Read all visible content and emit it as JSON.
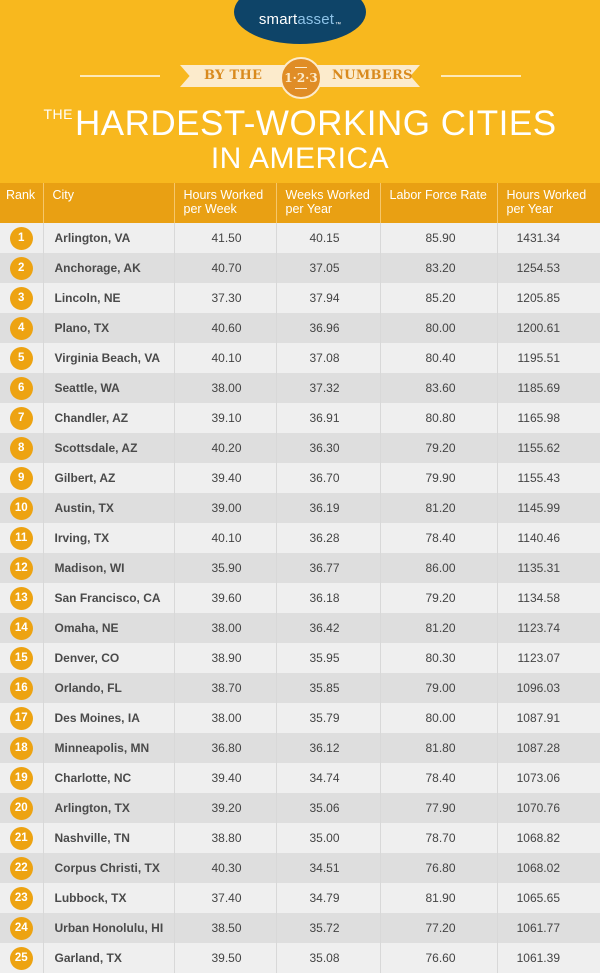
{
  "brand": {
    "logo_main": "smart",
    "logo_accent": "asset",
    "logo_tm": "™",
    "colors": {
      "header_bg": "#F8B81E",
      "table_header_bg": "#E9A013",
      "logo_bg": "#0E4468",
      "rank_badge": "#EDA312"
    }
  },
  "ribbon": {
    "left": "BY THE",
    "badge": "1·2·3",
    "right": "NUMBERS"
  },
  "title": {
    "the": "THE",
    "line1": "HARDEST-WORKING CITIES",
    "line2": "IN AMERICA"
  },
  "table": {
    "columns": [
      "Rank",
      "City",
      "Hours Worked per Week",
      "Weeks Worked per Year",
      "Labor Force Rate",
      "Hours Worked per Year"
    ],
    "rows": [
      {
        "rank": "1",
        "city": "Arlington, VA",
        "hours_week": "41.50",
        "weeks_year": "40.15",
        "labor_rate": "85.90",
        "hours_year": "1431.34"
      },
      {
        "rank": "2",
        "city": "Anchorage, AK",
        "hours_week": "40.70",
        "weeks_year": "37.05",
        "labor_rate": "83.20",
        "hours_year": "1254.53"
      },
      {
        "rank": "3",
        "city": "Lincoln, NE",
        "hours_week": "37.30",
        "weeks_year": "37.94",
        "labor_rate": "85.20",
        "hours_year": "1205.85"
      },
      {
        "rank": "4",
        "city": "Plano, TX",
        "hours_week": "40.60",
        "weeks_year": "36.96",
        "labor_rate": "80.00",
        "hours_year": "1200.61"
      },
      {
        "rank": "5",
        "city": "Virginia Beach, VA",
        "hours_week": "40.10",
        "weeks_year": "37.08",
        "labor_rate": "80.40",
        "hours_year": "1195.51"
      },
      {
        "rank": "6",
        "city": "Seattle, WA",
        "hours_week": "38.00",
        "weeks_year": "37.32",
        "labor_rate": "83.60",
        "hours_year": "1185.69"
      },
      {
        "rank": "7",
        "city": "Chandler, AZ",
        "hours_week": "39.10",
        "weeks_year": "36.91",
        "labor_rate": "80.80",
        "hours_year": "1165.98"
      },
      {
        "rank": "8",
        "city": "Scottsdale, AZ",
        "hours_week": "40.20",
        "weeks_year": "36.30",
        "labor_rate": "79.20",
        "hours_year": "1155.62"
      },
      {
        "rank": "9",
        "city": "Gilbert, AZ",
        "hours_week": "39.40",
        "weeks_year": "36.70",
        "labor_rate": "79.90",
        "hours_year": "1155.43"
      },
      {
        "rank": "10",
        "city": "Austin, TX",
        "hours_week": "39.00",
        "weeks_year": "36.19",
        "labor_rate": "81.20",
        "hours_year": "1145.99"
      },
      {
        "rank": "11",
        "city": "Irving, TX",
        "hours_week": "40.10",
        "weeks_year": "36.28",
        "labor_rate": "78.40",
        "hours_year": "1140.46"
      },
      {
        "rank": "12",
        "city": "Madison, WI",
        "hours_week": "35.90",
        "weeks_year": "36.77",
        "labor_rate": "86.00",
        "hours_year": "1135.31"
      },
      {
        "rank": "13",
        "city": "San Francisco, CA",
        "hours_week": "39.60",
        "weeks_year": "36.18",
        "labor_rate": "79.20",
        "hours_year": "1134.58"
      },
      {
        "rank": "14",
        "city": "Omaha, NE",
        "hours_week": "38.00",
        "weeks_year": "36.42",
        "labor_rate": "81.20",
        "hours_year": "1123.74"
      },
      {
        "rank": "15",
        "city": "Denver, CO",
        "hours_week": "38.90",
        "weeks_year": "35.95",
        "labor_rate": "80.30",
        "hours_year": "1123.07"
      },
      {
        "rank": "16",
        "city": "Orlando, FL",
        "hours_week": "38.70",
        "weeks_year": "35.85",
        "labor_rate": "79.00",
        "hours_year": "1096.03"
      },
      {
        "rank": "17",
        "city": "Des Moines, IA",
        "hours_week": "38.00",
        "weeks_year": "35.79",
        "labor_rate": "80.00",
        "hours_year": "1087.91"
      },
      {
        "rank": "18",
        "city": "Minneapolis, MN",
        "hours_week": "36.80",
        "weeks_year": "36.12",
        "labor_rate": "81.80",
        "hours_year": "1087.28"
      },
      {
        "rank": "19",
        "city": "Charlotte, NC",
        "hours_week": "39.40",
        "weeks_year": "34.74",
        "labor_rate": "78.40",
        "hours_year": "1073.06"
      },
      {
        "rank": "20",
        "city": "Arlington, TX",
        "hours_week": "39.20",
        "weeks_year": "35.06",
        "labor_rate": "77.90",
        "hours_year": "1070.76"
      },
      {
        "rank": "21",
        "city": "Nashville, TN",
        "hours_week": "38.80",
        "weeks_year": "35.00",
        "labor_rate": "78.70",
        "hours_year": "1068.82"
      },
      {
        "rank": "22",
        "city": "Corpus Christi, TX",
        "hours_week": "40.30",
        "weeks_year": "34.51",
        "labor_rate": "76.80",
        "hours_year": "1068.02"
      },
      {
        "rank": "23",
        "city": "Lubbock, TX",
        "hours_week": "37.40",
        "weeks_year": "34.79",
        "labor_rate": "81.90",
        "hours_year": "1065.65"
      },
      {
        "rank": "24",
        "city": "Urban Honolulu, HI",
        "hours_week": "38.50",
        "weeks_year": "35.72",
        "labor_rate": "77.20",
        "hours_year": "1061.77"
      },
      {
        "rank": "25",
        "city": "Garland, TX",
        "hours_week": "39.50",
        "weeks_year": "35.08",
        "labor_rate": "76.60",
        "hours_year": "1061.39"
      }
    ]
  }
}
